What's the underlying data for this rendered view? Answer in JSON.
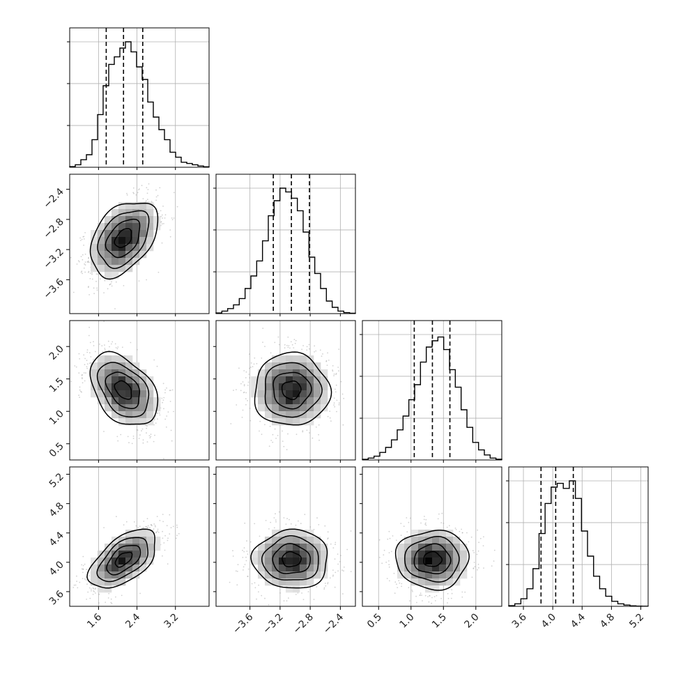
{
  "chart_data": {
    "type": "corner",
    "title": "",
    "parameters": [
      {
        "index": 0,
        "range": [
          1.0,
          3.9
        ],
        "ticks": [
          1.6,
          2.4,
          3.2
        ],
        "tick_labels": [
          "1.6",
          "2.4",
          "3.2"
        ],
        "histogram": [
          0.005,
          0.02,
          0.06,
          0.1,
          0.22,
          0.42,
          0.65,
          0.82,
          0.88,
          0.95,
          1.0,
          0.92,
          0.8,
          0.7,
          0.52,
          0.4,
          0.3,
          0.22,
          0.12,
          0.08,
          0.04,
          0.03,
          0.02,
          0.01,
          0.004
        ],
        "quantiles": [
          1.76,
          2.12,
          2.52
        ]
      },
      {
        "index": 1,
        "range": [
          -4.05,
          -2.2
        ],
        "ticks": [
          -3.6,
          -3.2,
          -2.8,
          -2.4
        ],
        "tick_labels": [
          "−3.6",
          "−3.2",
          "−2.8",
          "−2.4"
        ],
        "histogram": [
          0.005,
          0.02,
          0.04,
          0.07,
          0.12,
          0.2,
          0.3,
          0.42,
          0.58,
          0.78,
          0.9,
          1.0,
          0.97,
          0.92,
          0.82,
          0.65,
          0.45,
          0.32,
          0.2,
          0.1,
          0.05,
          0.02,
          0.008,
          0.003
        ],
        "quantiles": [
          -3.29,
          -3.05,
          -2.81
        ]
      },
      {
        "index": 2,
        "range": [
          0.25,
          2.4
        ],
        "ticks": [
          0.5,
          1.0,
          1.5,
          2.0
        ],
        "tick_labels": [
          "0.5",
          "1.0",
          "1.5",
          "2.0"
        ],
        "histogram": [
          0.005,
          0.015,
          0.03,
          0.06,
          0.1,
          0.16,
          0.24,
          0.35,
          0.48,
          0.6,
          0.78,
          0.9,
          0.95,
          0.98,
          0.88,
          0.72,
          0.58,
          0.4,
          0.26,
          0.14,
          0.08,
          0.04,
          0.015,
          0.006
        ],
        "quantiles": [
          1.05,
          1.33,
          1.6
        ]
      },
      {
        "index": 3,
        "range": [
          3.4,
          5.3
        ],
        "ticks": [
          3.6,
          4.0,
          4.4,
          4.8,
          5.2
        ],
        "tick_labels": [
          "3.6",
          "4.0",
          "4.4",
          "4.8",
          "5.2"
        ],
        "histogram": [
          0.005,
          0.02,
          0.06,
          0.14,
          0.3,
          0.58,
          0.82,
          0.95,
          0.98,
          0.94,
          1.0,
          0.86,
          0.6,
          0.4,
          0.24,
          0.14,
          0.08,
          0.04,
          0.02,
          0.01,
          0.004,
          0.002,
          0.001
        ],
        "quantiles": [
          3.84,
          4.04,
          4.28
        ]
      }
    ],
    "pairs": [
      {
        "row": 1,
        "col": 0,
        "mean": [
          2.12,
          -3.05
        ],
        "sd": [
          0.35,
          0.25
        ],
        "rho": 0.4
      },
      {
        "row": 2,
        "col": 0,
        "mean": [
          2.12,
          1.33
        ],
        "sd": [
          0.35,
          0.28
        ],
        "rho": -0.4
      },
      {
        "row": 2,
        "col": 1,
        "mean": [
          -3.05,
          1.33
        ],
        "sd": [
          0.25,
          0.28
        ],
        "rho": 0.0
      },
      {
        "row": 3,
        "col": 0,
        "mean": [
          2.12,
          4.04
        ],
        "sd": [
          0.35,
          0.2
        ],
        "rho": 0.55
      },
      {
        "row": 3,
        "col": 1,
        "mean": [
          -3.05,
          4.04
        ],
        "sd": [
          0.25,
          0.2
        ],
        "rho": 0.0
      },
      {
        "row": 3,
        "col": 2,
        "mean": [
          1.33,
          4.04
        ],
        "sd": [
          0.28,
          0.2
        ],
        "rho": 0.0
      }
    ],
    "contour_levels_sigma": [
      0.5,
      1.0,
      1.5,
      2.0
    ],
    "grid": true,
    "line_color": "#000000",
    "grid_color": "#b0b0b0",
    "scatter_color": "#9a9a9a"
  }
}
